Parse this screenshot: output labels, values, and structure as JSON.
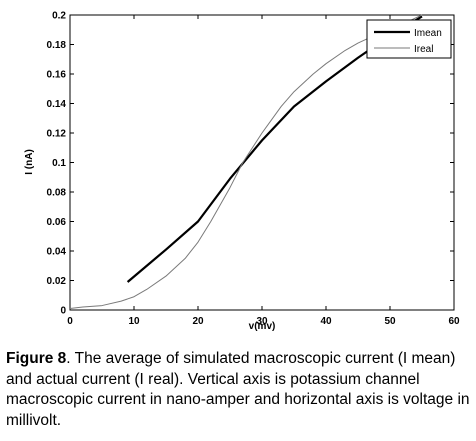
{
  "chart_data": {
    "type": "line",
    "xlabel": "v(mv)",
    "ylabel": "I (nA)",
    "xlim": [
      0,
      60
    ],
    "ylim": [
      0,
      0.2
    ],
    "xticks": [
      0,
      10,
      20,
      30,
      40,
      50,
      60
    ],
    "yticks": [
      0,
      0.02,
      0.04,
      0.06,
      0.08,
      0.1,
      0.12,
      0.14,
      0.16,
      0.18,
      0.2
    ],
    "ytick_labels": [
      "0",
      "0.02",
      "0.04",
      "0.06",
      "0.08",
      "0.1",
      "0.12",
      "0.14",
      "0.16",
      "0.18",
      "0.2"
    ],
    "grid": false,
    "legend_position": "top-right",
    "series": [
      {
        "name": "Imean",
        "color": "#000000",
        "line_weight": "thick",
        "x": [
          9,
          15,
          20,
          25,
          30,
          35,
          40,
          45,
          50,
          55
        ],
        "y": [
          0.019,
          0.041,
          0.06,
          0.089,
          0.115,
          0.138,
          0.155,
          0.171,
          0.186,
          0.199
        ]
      },
      {
        "name": "Ireal",
        "color": "#7a7a7a",
        "line_weight": "thin",
        "x": [
          0,
          2,
          5,
          8,
          10,
          12,
          15,
          18,
          20,
          22,
          25,
          27,
          30,
          33,
          35,
          38,
          40,
          43,
          45,
          48,
          50,
          53,
          55
        ],
        "y": [
          0.001,
          0.002,
          0.003,
          0.006,
          0.009,
          0.014,
          0.023,
          0.035,
          0.046,
          0.06,
          0.083,
          0.1,
          0.12,
          0.138,
          0.148,
          0.16,
          0.167,
          0.176,
          0.181,
          0.187,
          0.19,
          0.196,
          0.2
        ]
      }
    ]
  },
  "caption": {
    "label": "Figure 8",
    "text": ". The average of simulated macroscopic current (I mean) and actual current (I real). Vertical axis is potassium channel macroscopic current in nano-amper and horizontal axis is voltage in millivolt."
  }
}
